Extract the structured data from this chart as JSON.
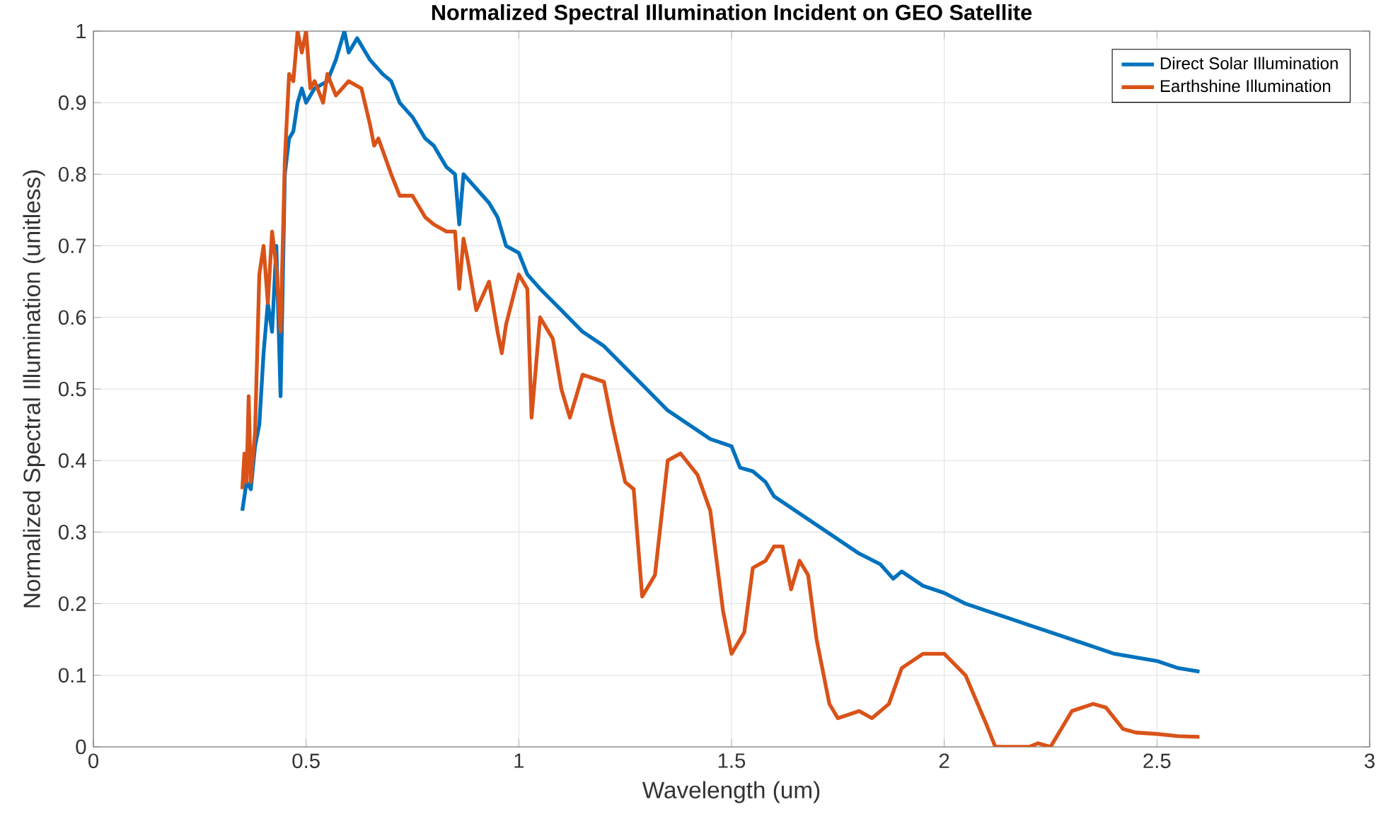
{
  "chart_data": {
    "type": "line",
    "title": "Normalized Spectral Illumination Incident on GEO Satellite",
    "xlabel": "Wavelength (um)",
    "ylabel": "Normalized Spectral Illumination (unitless)",
    "xlim": [
      0,
      3
    ],
    "ylim": [
      0,
      1
    ],
    "xticks": [
      0,
      0.5,
      1,
      1.5,
      2,
      2.5,
      3
    ],
    "yticks": [
      0,
      0.1,
      0.2,
      0.3,
      0.4,
      0.5,
      0.6,
      0.7,
      0.8,
      0.9,
      1
    ],
    "grid": true,
    "legend": "top right",
    "series": [
      {
        "name": "Direct Solar Illumination",
        "color": "#0072bd",
        "x": [
          0.35,
          0.36,
          0.37,
          0.38,
          0.39,
          0.4,
          0.41,
          0.42,
          0.43,
          0.44,
          0.45,
          0.46,
          0.47,
          0.48,
          0.49,
          0.5,
          0.52,
          0.55,
          0.57,
          0.59,
          0.6,
          0.62,
          0.65,
          0.68,
          0.7,
          0.72,
          0.75,
          0.78,
          0.8,
          0.83,
          0.85,
          0.86,
          0.87,
          0.9,
          0.93,
          0.95,
          0.97,
          1.0,
          1.02,
          1.05,
          1.1,
          1.15,
          1.2,
          1.25,
          1.3,
          1.35,
          1.4,
          1.45,
          1.5,
          1.52,
          1.55,
          1.58,
          1.6,
          1.65,
          1.7,
          1.75,
          1.8,
          1.85,
          1.88,
          1.9,
          1.95,
          2.0,
          2.05,
          2.1,
          2.15,
          2.2,
          2.25,
          2.3,
          2.35,
          2.4,
          2.45,
          2.5,
          2.55,
          2.6
        ],
        "values": [
          0.33,
          0.37,
          0.36,
          0.42,
          0.45,
          0.55,
          0.62,
          0.58,
          0.7,
          0.49,
          0.8,
          0.85,
          0.86,
          0.9,
          0.92,
          0.9,
          0.92,
          0.93,
          0.96,
          1.0,
          0.97,
          0.99,
          0.96,
          0.94,
          0.93,
          0.9,
          0.88,
          0.85,
          0.84,
          0.81,
          0.8,
          0.73,
          0.8,
          0.78,
          0.76,
          0.74,
          0.7,
          0.69,
          0.66,
          0.64,
          0.61,
          0.58,
          0.56,
          0.53,
          0.5,
          0.47,
          0.45,
          0.43,
          0.42,
          0.39,
          0.385,
          0.37,
          0.35,
          0.33,
          0.31,
          0.29,
          0.27,
          0.255,
          0.235,
          0.245,
          0.225,
          0.215,
          0.2,
          0.19,
          0.18,
          0.17,
          0.16,
          0.15,
          0.14,
          0.13,
          0.125,
          0.12,
          0.11,
          0.105
        ]
      },
      {
        "name": "Earthshine Illumination",
        "color": "#d95319",
        "x": [
          0.35,
          0.355,
          0.36,
          0.365,
          0.37,
          0.38,
          0.39,
          0.4,
          0.41,
          0.42,
          0.43,
          0.44,
          0.45,
          0.46,
          0.47,
          0.48,
          0.49,
          0.5,
          0.51,
          0.52,
          0.54,
          0.55,
          0.57,
          0.6,
          0.63,
          0.65,
          0.66,
          0.67,
          0.7,
          0.72,
          0.75,
          0.78,
          0.8,
          0.83,
          0.85,
          0.86,
          0.87,
          0.88,
          0.9,
          0.93,
          0.95,
          0.96,
          0.97,
          1.0,
          1.02,
          1.03,
          1.05,
          1.08,
          1.1,
          1.12,
          1.15,
          1.2,
          1.22,
          1.25,
          1.27,
          1.29,
          1.32,
          1.35,
          1.38,
          1.42,
          1.45,
          1.48,
          1.5,
          1.53,
          1.55,
          1.58,
          1.6,
          1.62,
          1.64,
          1.66,
          1.68,
          1.7,
          1.73,
          1.75,
          1.8,
          1.83,
          1.87,
          1.9,
          1.95,
          2.0,
          2.05,
          2.1,
          2.12,
          2.2,
          2.22,
          2.25,
          2.3,
          2.35,
          2.38,
          2.42,
          2.45,
          2.5,
          2.55,
          2.6
        ],
        "values": [
          0.36,
          0.41,
          0.37,
          0.49,
          0.37,
          0.44,
          0.66,
          0.7,
          0.62,
          0.72,
          0.67,
          0.58,
          0.82,
          0.94,
          0.93,
          1.0,
          0.97,
          1.0,
          0.92,
          0.93,
          0.9,
          0.94,
          0.91,
          0.93,
          0.92,
          0.87,
          0.84,
          0.85,
          0.8,
          0.77,
          0.77,
          0.74,
          0.73,
          0.72,
          0.72,
          0.64,
          0.71,
          0.68,
          0.61,
          0.65,
          0.58,
          0.55,
          0.59,
          0.66,
          0.64,
          0.46,
          0.6,
          0.57,
          0.5,
          0.46,
          0.52,
          0.51,
          0.45,
          0.37,
          0.36,
          0.21,
          0.24,
          0.4,
          0.41,
          0.38,
          0.33,
          0.19,
          0.13,
          0.16,
          0.25,
          0.26,
          0.28,
          0.28,
          0.22,
          0.26,
          0.24,
          0.15,
          0.06,
          0.04,
          0.05,
          0.04,
          0.06,
          0.11,
          0.13,
          0.13,
          0.1,
          0.03,
          0.0,
          0.0,
          0.005,
          0.0,
          0.05,
          0.06,
          0.055,
          0.025,
          0.02,
          0.018,
          0.015,
          0.014
        ]
      }
    ]
  }
}
